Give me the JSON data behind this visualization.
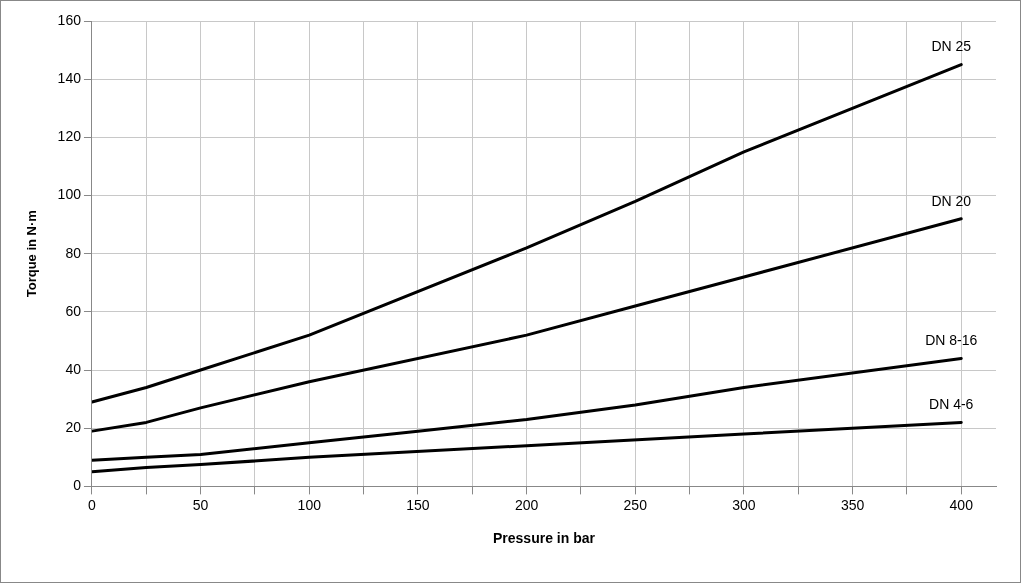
{
  "chart_data": {
    "type": "line",
    "xlabel": "Pressure in bar",
    "ylabel": "Torque in N·m",
    "xlim": [
      0,
      416
    ],
    "ylim": [
      0,
      160
    ],
    "xticks": [
      0,
      {
        "value": 25,
        "label": null
      },
      50,
      {
        "value": 75,
        "label": null
      },
      100,
      {
        "value": 125,
        "label": null
      },
      150,
      {
        "value": 175,
        "label": null
      },
      200,
      {
        "value": 225,
        "label": null
      },
      250,
      {
        "value": 275,
        "label": null
      },
      300,
      {
        "value": 325,
        "label": null
      },
      350,
      {
        "value": 375,
        "label": null
      },
      400
    ],
    "yticks": [
      0,
      20,
      40,
      60,
      80,
      100,
      120,
      140,
      160
    ],
    "grid": true,
    "legend": false,
    "marker": "none",
    "line_style": "solid",
    "series": [
      {
        "name": "DN 25",
        "color": "#000000",
        "x": [
          0,
          25,
          50,
          100,
          200,
          250,
          300,
          400
        ],
        "values": [
          29,
          34,
          40,
          52,
          82,
          98,
          115,
          145
        ]
      },
      {
        "name": "DN 20",
        "color": "#000000",
        "x": [
          0,
          25,
          50,
          100,
          200,
          250,
          300,
          400
        ],
        "values": [
          19,
          22,
          27,
          36,
          52,
          62,
          72,
          92
        ]
      },
      {
        "name": "DN 8-16",
        "color": "#000000",
        "x": [
          0,
          25,
          50,
          100,
          150,
          200,
          250,
          300,
          400
        ],
        "values": [
          9,
          10,
          11,
          15,
          19,
          23,
          28,
          34,
          44
        ]
      },
      {
        "name": "DN 4-6",
        "color": "#000000",
        "x": [
          0,
          25,
          50,
          100,
          200,
          300,
          400
        ],
        "values": [
          5,
          6.5,
          7.5,
          10,
          14,
          18,
          22
        ]
      }
    ]
  }
}
